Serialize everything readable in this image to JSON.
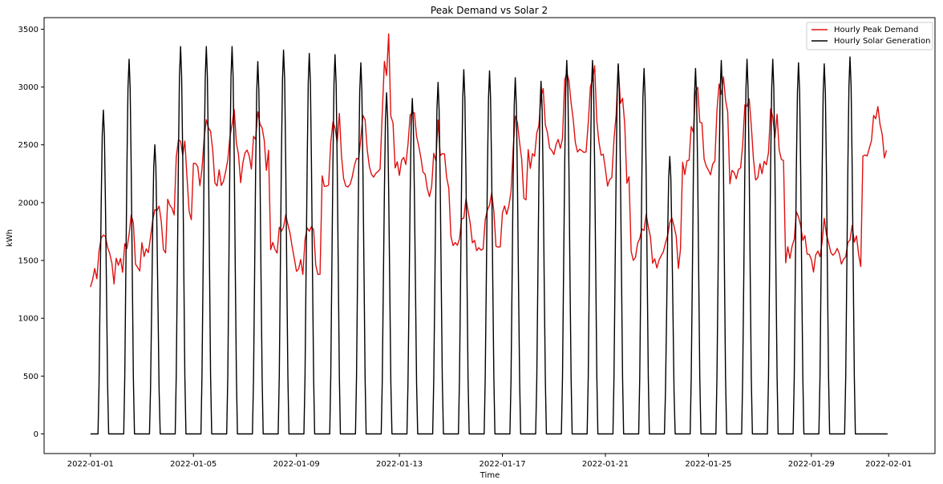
{
  "chart_data": {
    "type": "line",
    "title": "Peak Demand vs Solar 2",
    "xlabel": "Time",
    "ylabel": "kWh",
    "x_range": [
      "2022-01-01",
      "2022-02-01"
    ],
    "ylim": [
      -170,
      3600
    ],
    "x_ticks": [
      "2022-01-01",
      "2022-01-05",
      "2022-01-09",
      "2022-01-13",
      "2022-01-17",
      "2022-01-21",
      "2022-01-25",
      "2022-01-29",
      "2022-02-01"
    ],
    "y_ticks": [
      0,
      500,
      1000,
      1500,
      2000,
      2500,
      3000,
      3500
    ],
    "grid": false,
    "legend_position": "top-right",
    "series": [
      {
        "name": "Hourly Peak Demand",
        "color": "#e01010",
        "x": [
          "2022-01-01",
          "2022-01-02",
          "2022-01-03",
          "2022-01-04",
          "2022-01-05",
          "2022-01-06",
          "2022-01-07",
          "2022-01-08",
          "2022-01-09",
          "2022-01-10",
          "2022-01-11",
          "2022-01-12",
          "2022-01-13",
          "2022-01-14",
          "2022-01-15",
          "2022-01-16",
          "2022-01-17",
          "2022-01-18",
          "2022-01-19",
          "2022-01-20",
          "2022-01-21",
          "2022-01-22",
          "2022-01-23",
          "2022-01-24",
          "2022-01-25",
          "2022-01-26",
          "2022-01-27",
          "2022-01-28",
          "2022-01-29",
          "2022-01-30",
          "2022-01-31"
        ],
        "values": [
          1500,
          1550,
          1700,
          2100,
          2450,
          2450,
          2550,
          1700,
          1600,
          2400,
          2400,
          2450,
          2500,
          2350,
          1750,
          1650,
          2150,
          2600,
          2650,
          2600,
          2400,
          1700,
          1650,
          2500,
          2450,
          2500,
          2500,
          1700,
          1600,
          1650,
          2600
        ],
        "peak_values": [
          1800,
          1900,
          2100,
          2900,
          2800,
          2850,
          2800,
          1950,
          1800,
          2850,
          2850,
          3400,
          2900,
          2700,
          2100,
          2200,
          2850,
          3200,
          3250,
          3200,
          3280,
          2050,
          1850,
          3100,
          3420,
          2900,
          2900,
          1900,
          1900,
          1900,
          2800
        ]
      },
      {
        "name": "Hourly Solar Generation",
        "color": "#000000",
        "x": [
          "2022-01-01",
          "2022-01-02",
          "2022-01-03",
          "2022-01-04",
          "2022-01-05",
          "2022-01-06",
          "2022-01-07",
          "2022-01-08",
          "2022-01-09",
          "2022-01-10",
          "2022-01-11",
          "2022-01-12",
          "2022-01-13",
          "2022-01-14",
          "2022-01-15",
          "2022-01-16",
          "2022-01-17",
          "2022-01-18",
          "2022-01-19",
          "2022-01-20",
          "2022-01-21",
          "2022-01-22",
          "2022-01-23",
          "2022-01-24",
          "2022-01-25",
          "2022-01-26",
          "2022-01-27",
          "2022-01-28",
          "2022-01-29",
          "2022-01-30",
          "2022-01-31"
        ],
        "values": [
          2800,
          3240,
          2500,
          3350,
          3350,
          3350,
          3220,
          3320,
          3290,
          3280,
          3210,
          2950,
          2900,
          3040,
          3150,
          3140,
          3080,
          3050,
          3230,
          3230,
          3200,
          3160,
          2400,
          3160,
          3230,
          3240,
          3240,
          3210,
          3200,
          3260,
          0
        ]
      }
    ]
  }
}
